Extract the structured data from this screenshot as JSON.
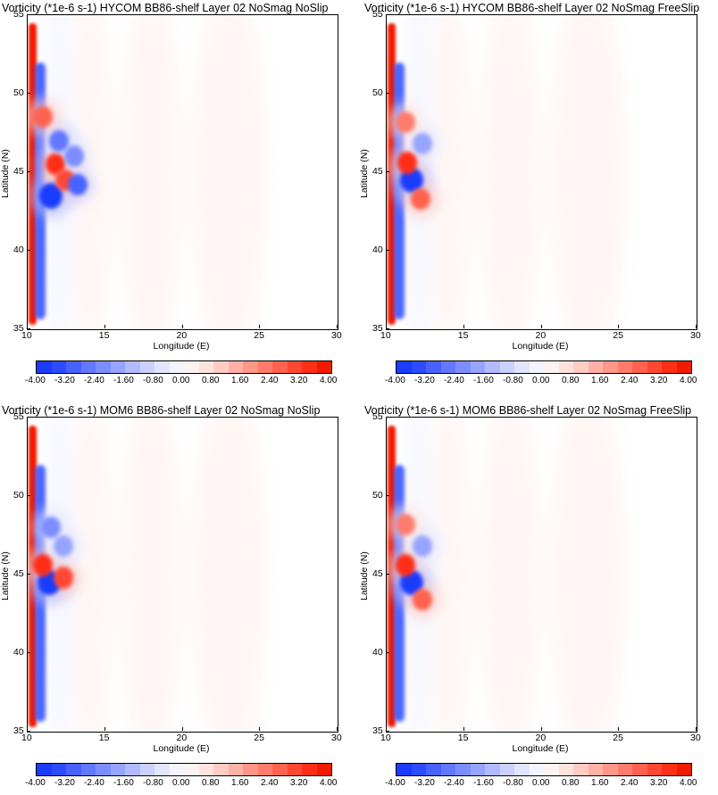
{
  "chart_data": [
    {
      "type": "heatmap",
      "title": "Vorticity (*1e-6 s-1) HYCOM BB86-shelf Layer 02 NoSmag NoSlip",
      "xlabel": "Longitude (E)",
      "ylabel": "Latitude (N)",
      "xlim": [
        10,
        30
      ],
      "ylim": [
        35,
        55
      ],
      "x_ticks": [
        10,
        15,
        20,
        25,
        30
      ],
      "y_ticks": [
        35,
        40,
        45,
        50,
        55
      ],
      "colorbar": {
        "range": [
          -4.0,
          4.0
        ],
        "tick_labels": [
          "-4.00",
          "-3.20",
          "-2.40",
          "-1.60",
          "-0.80",
          "0.00",
          "0.80",
          "1.60",
          "2.40",
          "3.20",
          "4.00"
        ],
        "levels": [
          -4.0,
          -3.6,
          -3.2,
          -2.8,
          -2.4,
          -2.0,
          -1.6,
          -1.2,
          -0.8,
          -0.4,
          0.0,
          0.4,
          0.8,
          1.2,
          1.6,
          2.0,
          2.4,
          2.8,
          3.2,
          3.6,
          4.0
        ],
        "colors": [
          "#1a3cff",
          "#2e4cff",
          "#4862ff",
          "#6278ff",
          "#7c8eff",
          "#97a4ff",
          "#b1baff",
          "#cbd0ff",
          "#e2e5ff",
          "#f3f4ff",
          "#fff3f1",
          "#ffe2dd",
          "#ffcbc3",
          "#ffb1a6",
          "#ff9789",
          "#ff7c6c",
          "#ff624f",
          "#ff4833",
          "#ff2e17",
          "#f21a00"
        ]
      },
      "features": {
        "boundary_current": "western boundary, positive vorticity along coast 10–10.5E from 35N to 54N, negative band just offshore",
        "eddies": [
          {
            "lon": 11.5,
            "lat": 43.5,
            "value": -3.6
          },
          {
            "lon": 11.8,
            "lat": 45.5,
            "value": 3.2
          },
          {
            "lon": 12.4,
            "lat": 44.5,
            "value": 3.0
          },
          {
            "lon": 13.2,
            "lat": 44.2,
            "value": -3.0
          },
          {
            "lon": 12.0,
            "lat": 47.0,
            "value": -2.6
          },
          {
            "lon": 13.0,
            "lat": 46.0,
            "value": -2.2
          },
          {
            "lon": 11.0,
            "lat": 48.5,
            "value": 2.4
          }
        ]
      }
    },
    {
      "type": "heatmap",
      "title": "Vorticity (*1e-6 s-1) HYCOM BB86-shelf Layer 02 NoSmag FreeSlip",
      "xlabel": "Longitude (E)",
      "ylabel": "Latitude (N)",
      "xlim": [
        10,
        30
      ],
      "ylim": [
        35,
        55
      ],
      "x_ticks": [
        10,
        15,
        20,
        25,
        30
      ],
      "y_ticks": [
        35,
        40,
        45,
        50,
        55
      ],
      "colorbar": {
        "range": [
          -4.0,
          4.0
        ],
        "tick_labels": [
          "-4.00",
          "-3.20",
          "-2.40",
          "-1.60",
          "-0.80",
          "0.00",
          "0.80",
          "1.60",
          "2.40",
          "3.20",
          "4.00"
        ]
      },
      "features": {
        "eddies": [
          {
            "lon": 11.6,
            "lat": 44.5,
            "value": -4.0
          },
          {
            "lon": 11.3,
            "lat": 45.6,
            "value": 3.4
          },
          {
            "lon": 12.2,
            "lat": 43.3,
            "value": 2.6
          },
          {
            "lon": 12.3,
            "lat": 46.8,
            "value": -2.0
          },
          {
            "lon": 11.2,
            "lat": 48.2,
            "value": 2.2
          }
        ]
      }
    },
    {
      "type": "heatmap",
      "title": "Vorticity (*1e-6 s-1) MOM6 BB86-shelf Layer 02 NoSmag NoSlip",
      "xlabel": "Longitude (E)",
      "ylabel": "Latitude (N)",
      "xlim": [
        10,
        30
      ],
      "ylim": [
        35,
        55
      ],
      "x_ticks": [
        10,
        15,
        20,
        25,
        30
      ],
      "y_ticks": [
        35,
        40,
        45,
        50,
        55
      ],
      "colorbar": {
        "range": [
          -4.0,
          4.0
        ],
        "tick_labels": [
          "-4.00",
          "-3.20",
          "-2.40",
          "-1.60",
          "-0.80",
          "0.00",
          "0.80",
          "1.60",
          "2.40",
          "3.20",
          "4.00"
        ]
      },
      "features": {
        "eddies": [
          {
            "lon": 11.4,
            "lat": 44.5,
            "value": -4.0
          },
          {
            "lon": 11.0,
            "lat": 45.6,
            "value": 3.4
          },
          {
            "lon": 12.3,
            "lat": 44.8,
            "value": 3.0
          },
          {
            "lon": 12.3,
            "lat": 46.8,
            "value": -2.0
          },
          {
            "lon": 11.5,
            "lat": 48.0,
            "value": -2.2
          }
        ]
      }
    },
    {
      "type": "heatmap",
      "title": "Vorticity (*1e-6 s-1) MOM6 BB86-shelf Layer 02 NoSmag FreeSlip",
      "xlabel": "Longitude (E)",
      "ylabel": "Latitude (N)",
      "xlim": [
        10,
        30
      ],
      "ylim": [
        35,
        55
      ],
      "x_ticks": [
        10,
        15,
        20,
        25,
        30
      ],
      "y_ticks": [
        35,
        40,
        45,
        50,
        55
      ],
      "colorbar": {
        "range": [
          -4.0,
          4.0
        ],
        "tick_labels": [
          "-4.00",
          "-3.20",
          "-2.40",
          "-1.60",
          "-0.80",
          "0.00",
          "0.80",
          "1.60",
          "2.40",
          "3.20",
          "4.00"
        ]
      },
      "features": {
        "eddies": [
          {
            "lon": 11.6,
            "lat": 44.5,
            "value": -4.0
          },
          {
            "lon": 11.2,
            "lat": 45.6,
            "value": 3.4
          },
          {
            "lon": 12.3,
            "lat": 43.4,
            "value": 2.6
          },
          {
            "lon": 12.3,
            "lat": 46.8,
            "value": -2.0
          },
          {
            "lon": 11.2,
            "lat": 48.2,
            "value": 2.2
          }
        ]
      }
    }
  ]
}
